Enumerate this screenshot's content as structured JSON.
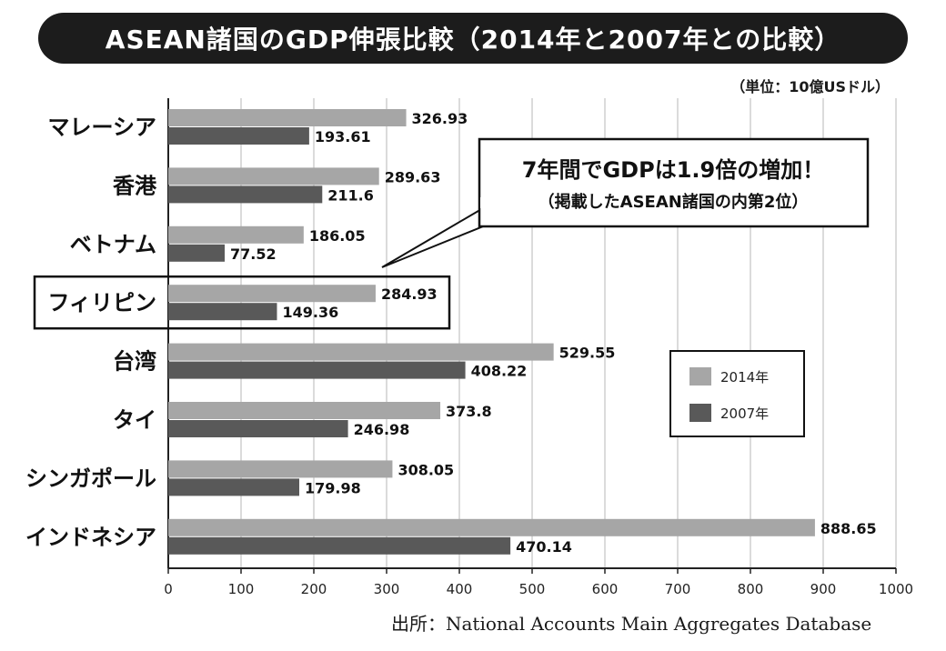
{
  "title": "ASEAN諸国のGDP伸張比較（2014年と2007年との比較）",
  "unit": "（単位：10億USドル）",
  "source": "出所：National Accounts Main Aggregates Database",
  "callout": {
    "line1": "7年間でGDPは1.9倍の増加！",
    "line2": "（掲載したASEAN諸国の内第2位）"
  },
  "colors": {
    "s2014": "#a6a6a6",
    "s2007": "#595959",
    "grid": "#cfcfcf",
    "axis": "#222222"
  },
  "chart_data": {
    "type": "bar",
    "orientation": "horizontal",
    "categories": [
      "マレーシア",
      "香港",
      "ベトナム",
      "フィリピン",
      "台湾",
      "タイ",
      "シンガポール",
      "インドネシア"
    ],
    "series": [
      {
        "name": "2014年",
        "values": [
          326.93,
          289.63,
          186.05,
          284.93,
          529.55,
          373.8,
          308.05,
          888.65
        ],
        "labels": [
          "326.93",
          "289.63",
          "186.05",
          "284.93",
          "529.55",
          "373.8",
          "308.05",
          "888.65"
        ]
      },
      {
        "name": "2007年",
        "values": [
          193.61,
          211.6,
          77.52,
          149.36,
          408.22,
          246.98,
          179.98,
          470.14
        ],
        "labels": [
          "193.61",
          "211.6",
          "77.52",
          "149.36",
          "408.22",
          "246.98",
          "179.98",
          "470.14"
        ]
      }
    ],
    "xlim": [
      0,
      1000
    ],
    "xticks": [
      0,
      100,
      200,
      300,
      400,
      500,
      600,
      700,
      800,
      900,
      1000
    ],
    "grid": true,
    "legend_position": "right",
    "highlighted_category": "フィリピン"
  }
}
